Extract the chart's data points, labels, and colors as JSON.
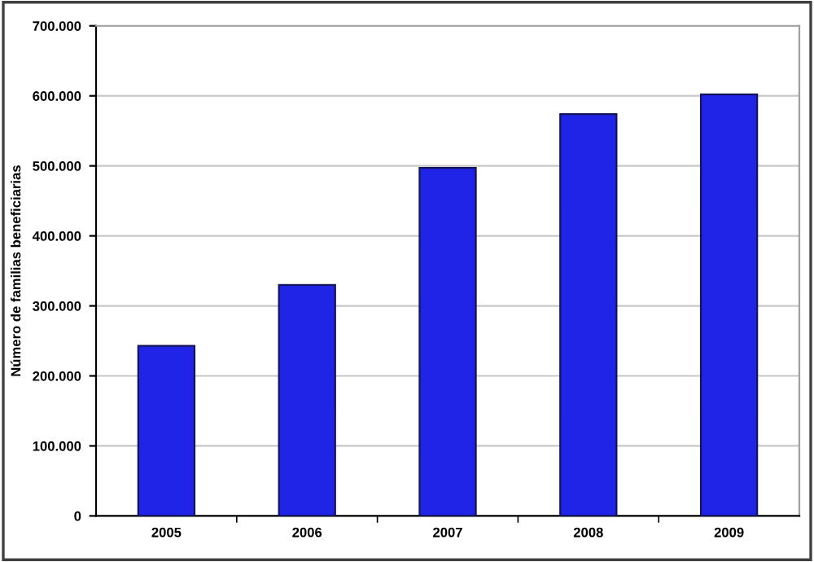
{
  "chart_data": {
    "type": "bar",
    "ylabel": "Número de familias beneficiarias",
    "categories": [
      "2005",
      "2006",
      "2007",
      "2008",
      "2009"
    ],
    "values": [
      243000,
      330000,
      497000,
      574000,
      602000
    ],
    "color": "#1f24e6",
    "ylim": [
      0,
      700000
    ],
    "yticks": [
      0,
      {
        "value": 100000,
        "label": "100.000"
      },
      {
        "value": 200000,
        "label": "200.000"
      },
      {
        "value": 300000,
        "label": "300.000"
      },
      {
        "value": 400000,
        "label": "400.000"
      },
      {
        "value": 500000,
        "label": "500.000"
      },
      {
        "value": 600000,
        "label": "600.000"
      },
      {
        "value": 700000,
        "label": "700.000"
      }
    ],
    "grid": "y",
    "legend": false
  }
}
